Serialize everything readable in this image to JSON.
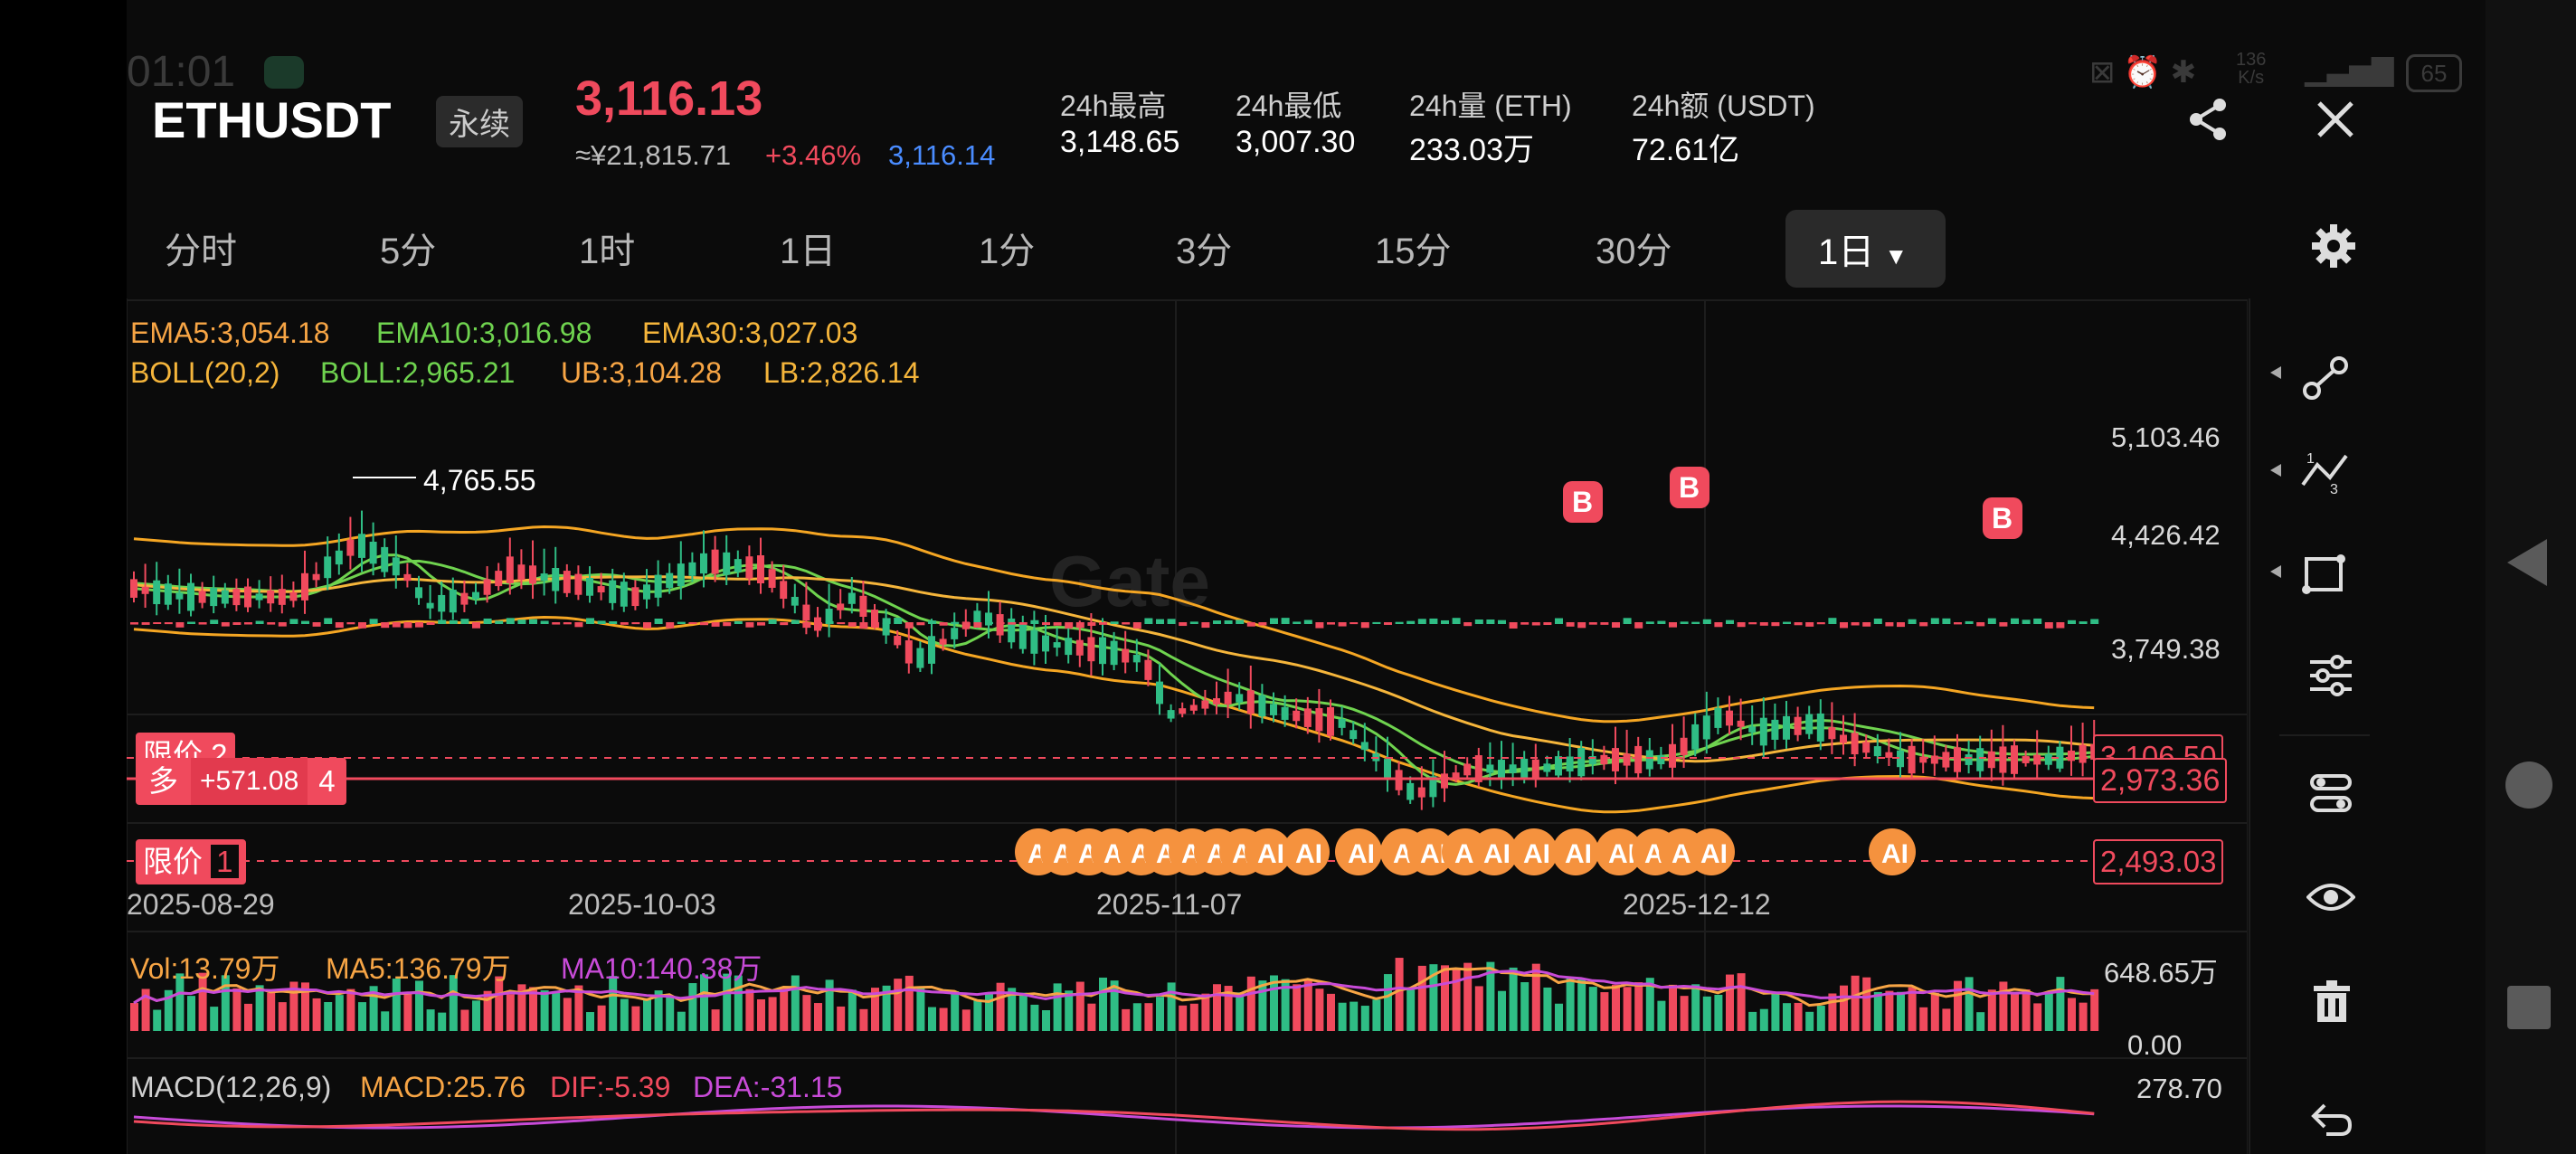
{
  "status_bar": {
    "time": "01:01",
    "net_speed_top": "136",
    "net_speed_bottom": "K/s",
    "battery": "65"
  },
  "header": {
    "symbol": "ETHUSDT",
    "contract_type": "永续",
    "last_price": "3,116.13",
    "cny_price": "≈¥21,815.71",
    "change_pct": "+3.46%",
    "mark_price": "3,116.14",
    "stats": [
      {
        "label": "24h最高",
        "value": "3,148.65"
      },
      {
        "label": "24h最低",
        "value": "3,007.30"
      },
      {
        "label": "24h量 (ETH)",
        "value": "233.03万"
      },
      {
        "label": "24h额 (USDT)",
        "value": "72.61亿"
      }
    ]
  },
  "interval_tabs": [
    "分时",
    "5分",
    "1时",
    "1日",
    "1分",
    "3分",
    "15分",
    "30分"
  ],
  "active_interval": "1日",
  "indicators": {
    "ema5": "EMA5:3,054.18",
    "ema10": "EMA10:3,016.98",
    "ema30": "EMA30:3,027.03",
    "boll": "BOLL(20,2)",
    "boll_mid": "BOLL:2,965.21",
    "ub": "UB:3,104.28",
    "lb": "LB:2,826.14"
  },
  "price_axis": [
    "5,103.46",
    "4,426.42",
    "3,749.38"
  ],
  "max_label": "4,765.55",
  "date_axis": [
    "2025-08-29",
    "2025-10-03",
    "2025-11-07",
    "2025-12-12"
  ],
  "watermark": "Gate",
  "orders": {
    "limit_top_label": "限价",
    "limit_top_count": "2",
    "limit_top_price": "3,106.50",
    "position_side": "多",
    "position_pnl": "+571.08",
    "position_qty": "4",
    "position_price": "2,973.36",
    "limit_bottom_label": "限价",
    "limit_bottom_count": "1",
    "limit_bottom_price": "2,493.03"
  },
  "trade_markers": {
    "buy": "B",
    "ai": "AI"
  },
  "volume": {
    "vol": "Vol:13.79万",
    "ma5": "MA5:136.79万",
    "ma10": "MA10:140.38万",
    "axis_top": "648.65万",
    "axis_zero": "0.00"
  },
  "macd": {
    "params": "MACD(12,26,9)",
    "macd": "MACD:25.76",
    "dif": "DIF:-5.39",
    "dea": "DEA:-31.15",
    "axis_top": "278.70"
  },
  "colors": {
    "up": "#f04a5d",
    "down": "#2fbd85",
    "ema5": "#f7a545",
    "ema10": "#6fd34f",
    "ema30": "#f5b53b",
    "boll": "#f5a623",
    "ma10": "#c84bd8",
    "blue": "#4a8cff",
    "marker": "#f5923e"
  }
}
